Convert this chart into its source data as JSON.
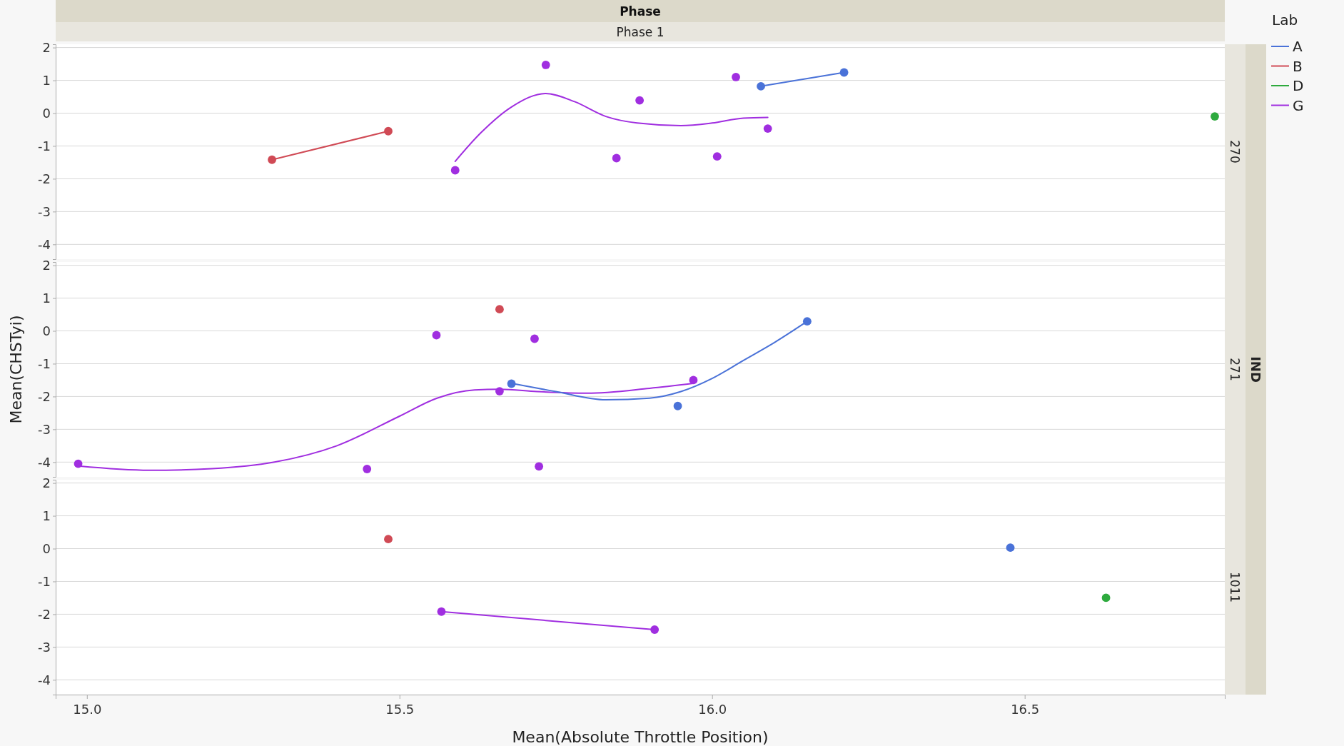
{
  "chart_data": [
    {
      "type": "scatter",
      "title": "Phase",
      "subtitle": "Phase 1",
      "legend_title": "Lab",
      "legend": "right",
      "marker": "circle",
      "grid": "y",
      "tick_labels": "y",
      "annotations": [
        "270"
      ],
      "xlim": [
        14.95,
        16.82
      ],
      "xticks": [
        15.0,
        15.5,
        16.0,
        16.5
      ],
      "ylim": [
        -4.45,
        2.1
      ],
      "yticks": [
        -4,
        -3,
        -2,
        -1,
        0,
        1,
        2
      ],
      "series": [
        {
          "name": "A",
          "color": "#4a72d8",
          "x": [
            16.078,
            16.211
          ],
          "values": [
            0.82,
            1.24
          ]
        },
        {
          "name": "B",
          "color": "#d04a55",
          "x": [
            15.296,
            15.482
          ],
          "values": [
            -1.42,
            -0.55
          ]
        },
        {
          "name": "D",
          "color": "#2eaa3e",
          "x": [
            16.804
          ],
          "values": [
            -0.1
          ]
        },
        {
          "name": "G",
          "color": "#a02ee0",
          "x": [
            15.589,
            15.734,
            15.847,
            15.884,
            16.008,
            16.038,
            16.089
          ],
          "values": [
            -1.74,
            1.47,
            -1.37,
            0.39,
            -1.32,
            1.1,
            -0.47
          ]
        },
        {
          "type": "line",
          "marker": "none",
          "color": "#4a72d8",
          "x": [
            16.078,
            16.211
          ],
          "values": [
            0.82,
            1.24
          ]
        },
        {
          "type": "line",
          "marker": "none",
          "color": "#d04a55",
          "x": [
            15.296,
            15.482
          ],
          "values": [
            -1.42,
            -0.55
          ]
        },
        {
          "type": "line",
          "marker": "none",
          "color": "#a02ee0",
          "x": [
            15.589,
            15.63,
            15.68,
            15.734,
            15.78,
            15.83,
            15.88,
            15.95,
            16.0,
            16.05,
            16.089
          ],
          "values": [
            -1.47,
            -0.6,
            0.2,
            0.6,
            0.35,
            -0.1,
            -0.3,
            -0.38,
            -0.3,
            -0.15,
            -0.13
          ]
        }
      ]
    },
    {
      "type": "scatter",
      "ylabel": "Mean(CHSTyi)",
      "marker": "circle",
      "grid": "y",
      "tick_labels": "y",
      "annotations": [
        "271",
        "IND"
      ],
      "xlim": [
        14.95,
        16.82
      ],
      "xticks": [
        15.0,
        15.5,
        16.0,
        16.5
      ],
      "ylim": [
        -4.45,
        2.1
      ],
      "yticks": [
        -4,
        -3,
        -2,
        -1,
        0,
        1,
        2
      ],
      "series": [
        {
          "color": "#4a72d8",
          "x": [
            15.679,
            15.945,
            16.152
          ],
          "values": [
            -1.61,
            -2.29,
            0.29
          ]
        },
        {
          "color": "#d04a55",
          "x": [
            15.66
          ],
          "values": [
            0.66
          ]
        },
        {
          "color": "#a02ee0",
          "x": [
            15.559,
            15.716,
            15.66,
            15.97,
            14.986,
            15.448,
            15.723
          ],
          "values": [
            -0.13,
            -0.24,
            -1.84,
            -1.5,
            -4.05,
            -4.21,
            -4.13
          ]
        },
        {
          "type": "line",
          "marker": "none",
          "color": "#a02ee0",
          "x": [
            14.986,
            15.1,
            15.2,
            15.3,
            15.4,
            15.5,
            15.56,
            15.62,
            15.66,
            15.72,
            15.8,
            15.9,
            15.97
          ],
          "values": [
            -4.12,
            -4.25,
            -4.2,
            -4.0,
            -3.5,
            -2.6,
            -2.05,
            -1.8,
            -1.78,
            -1.85,
            -1.9,
            -1.75,
            -1.6
          ]
        },
        {
          "type": "line",
          "marker": "none",
          "color": "#4a72d8",
          "x": [
            15.679,
            15.75,
            15.83,
            15.9,
            15.95,
            16.0,
            16.05,
            16.1,
            16.152
          ],
          "values": [
            -1.6,
            -1.85,
            -2.1,
            -2.05,
            -1.85,
            -1.45,
            -0.9,
            -0.35,
            0.29
          ]
        }
      ]
    },
    {
      "type": "scatter",
      "xlabel": "Mean(Absolute Throttle Position)",
      "marker": "circle",
      "grid": "y",
      "annotations": [
        "1011"
      ],
      "xlim": [
        14.95,
        16.82
      ],
      "xticks": [
        {
          "value": 15,
          "label": "15.0"
        },
        15.5,
        {
          "value": 16,
          "label": "16.0"
        },
        16.5
      ],
      "ylim": [
        -4.45,
        2.1
      ],
      "yticks": [
        -4,
        -3,
        -2,
        -1,
        0,
        1,
        2
      ],
      "series": [
        {
          "color": "#4a72d8",
          "x": [
            16.477
          ],
          "values": [
            0.03
          ]
        },
        {
          "color": "#d04a55",
          "x": [
            15.482
          ],
          "values": [
            0.29
          ]
        },
        {
          "color": "#2eaa3e",
          "x": [
            16.63
          ],
          "values": [
            -1.5
          ]
        },
        {
          "color": "#a02ee0",
          "x": [
            15.567,
            15.908
          ],
          "values": [
            -1.92,
            -2.47
          ]
        },
        {
          "type": "line",
          "marker": "none",
          "color": "#a02ee0",
          "x": [
            15.567,
            15.908
          ],
          "values": [
            -1.92,
            -2.47
          ]
        }
      ]
    }
  ]
}
